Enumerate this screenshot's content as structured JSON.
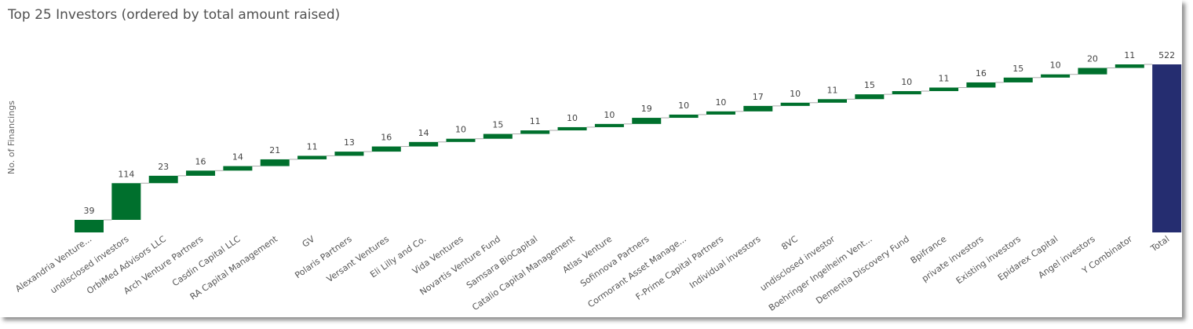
{
  "title": "Top 25 Investors (ordered by total amount raised)",
  "chart_data": {
    "type": "waterfall",
    "title": "Top 25 Investors (ordered by total amount raised)",
    "ylabel": "No. of Financings",
    "xlabel": "",
    "categories": [
      "Alexandria Venture...",
      "undisclosed investors",
      "OrbiMed Advisors LLC",
      "Arch Venture Partners",
      "Casdin Capital LLC",
      "RA Capital Management",
      "GV",
      "Polaris Partners",
      "Versant Ventures",
      "Eli Lilly and Co.",
      "Vida Ventures",
      "Novartis Venture Fund",
      "Samsara BioCapital",
      "Catalio Capital Management",
      "Atlas Venture",
      "Sofinnova Partners",
      "Cormorant Asset Manage...",
      "F-Prime Capital Partners",
      "Individual investors",
      "8VC",
      "undisclosed investor",
      "Boehringer Ingelheim Vent...",
      "Dementia Discovery Fund",
      "Bpifrance",
      "private investors",
      "Existing investors",
      "Epidarex Capital",
      "Angel investors",
      "Y Combinator"
    ],
    "values": [
      39,
      114,
      23,
      16,
      14,
      21,
      11,
      13,
      16,
      14,
      10,
      15,
      11,
      10,
      10,
      19,
      10,
      10,
      17,
      10,
      11,
      15,
      10,
      11,
      16,
      15,
      10,
      20,
      11
    ],
    "total_label": "Total",
    "total_value": 522,
    "ylim": [
      0,
      540
    ],
    "colors": {
      "increase": "#00702d",
      "total": "#252d70",
      "connector": "#aaaaaa"
    },
    "legend": "none",
    "grid": false
  }
}
